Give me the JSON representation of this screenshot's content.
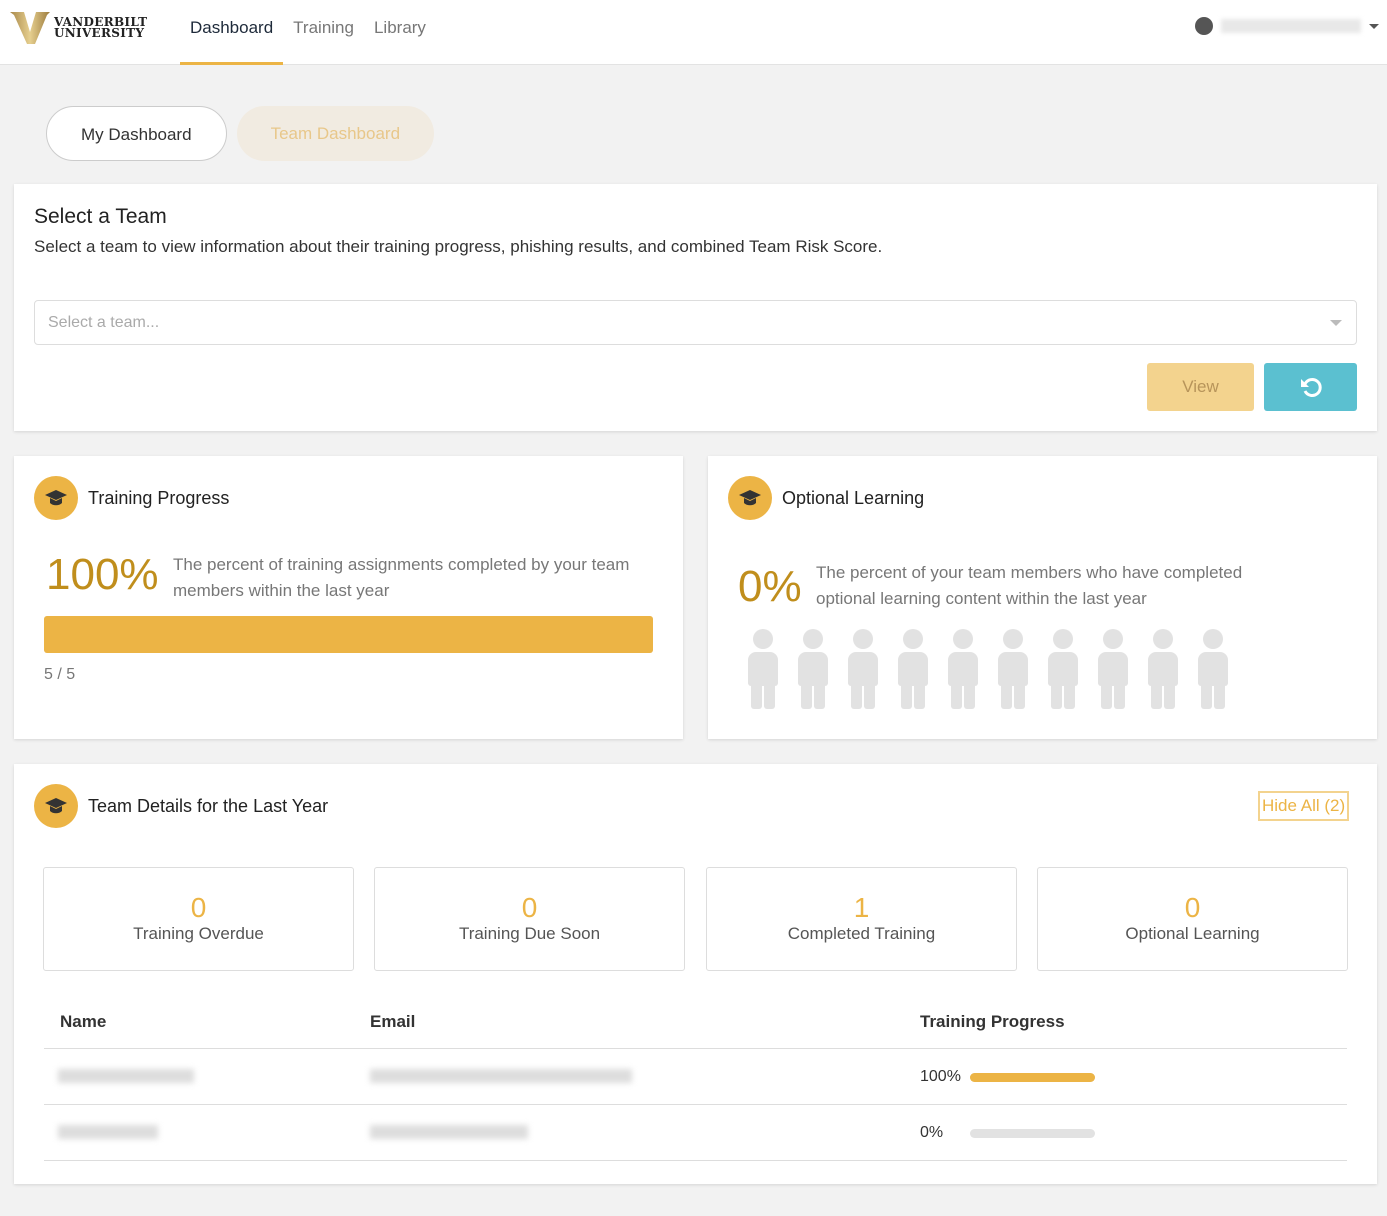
{
  "header": {
    "logo_line1": "VANDERBILT",
    "logo_line2": "UNIVERSITY",
    "nav": [
      "Dashboard",
      "Training",
      "Library"
    ],
    "active": "Dashboard"
  },
  "pills": {
    "my": "My Dashboard",
    "team": "Team Dashboard"
  },
  "select_team": {
    "title": "Select a Team",
    "description": "Select a team to view information about their training progress, phishing results, and combined Team Risk Score.",
    "placeholder": "Select a team...",
    "view_label": "View",
    "reset_icon": "undo-icon"
  },
  "training_progress": {
    "title": "Training Progress",
    "percent": "100%",
    "description": "The percent of training assignments completed by your team members within the last year",
    "progress": 1.0,
    "count": "5 / 5"
  },
  "optional_learning": {
    "title": "Optional Learning",
    "percent": "0%",
    "description": "The percent of your team members who have completed optional learning content within the last year",
    "people_total": 10,
    "people_completed": 0
  },
  "team_details": {
    "title": "Team Details for the Last Year",
    "hide_all": "Hide All (2)",
    "stats": [
      {
        "value": "0",
        "label": "Training Overdue"
      },
      {
        "value": "0",
        "label": "Training Due Soon"
      },
      {
        "value": "1",
        "label": "Completed Training"
      },
      {
        "value": "0",
        "label": "Optional Learning"
      }
    ],
    "columns": {
      "name": "Name",
      "email": "Email",
      "progress": "Training Progress"
    },
    "rows": [
      {
        "progress_label": "100%",
        "progress": 1.0
      },
      {
        "progress_label": "0%",
        "progress": 0
      }
    ]
  },
  "colors": {
    "accent": "#ecb445",
    "gold_text": "#c08e1c",
    "teal": "#5bc0d0"
  }
}
